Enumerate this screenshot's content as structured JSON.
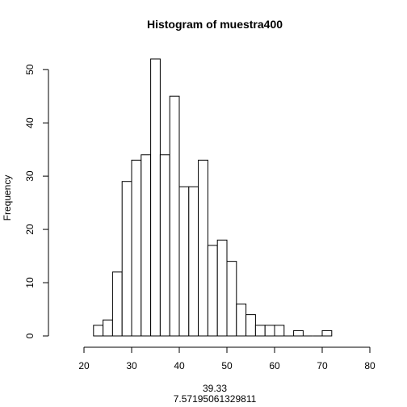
{
  "chart_data": {
    "type": "bar",
    "title": "Histogram of muestra400",
    "xlabel_line1": "39.33",
    "xlabel_line2": "7.57195061329811",
    "ylabel": "Frequency",
    "xlim": [
      20,
      80
    ],
    "ylim": [
      0,
      52
    ],
    "x_ticks": [
      20,
      30,
      40,
      50,
      60,
      70,
      80
    ],
    "y_ticks": [
      0,
      10,
      20,
      30,
      40,
      50
    ],
    "bin_width": 2,
    "bin_start": 22,
    "values": [
      2,
      3,
      12,
      29,
      33,
      34,
      52,
      34,
      45,
      28,
      28,
      33,
      17,
      18,
      14,
      6,
      4,
      2,
      2,
      2,
      0,
      1,
      0,
      0,
      1
    ],
    "bar_fill": "#ffffff",
    "bar_stroke": "#000000"
  }
}
